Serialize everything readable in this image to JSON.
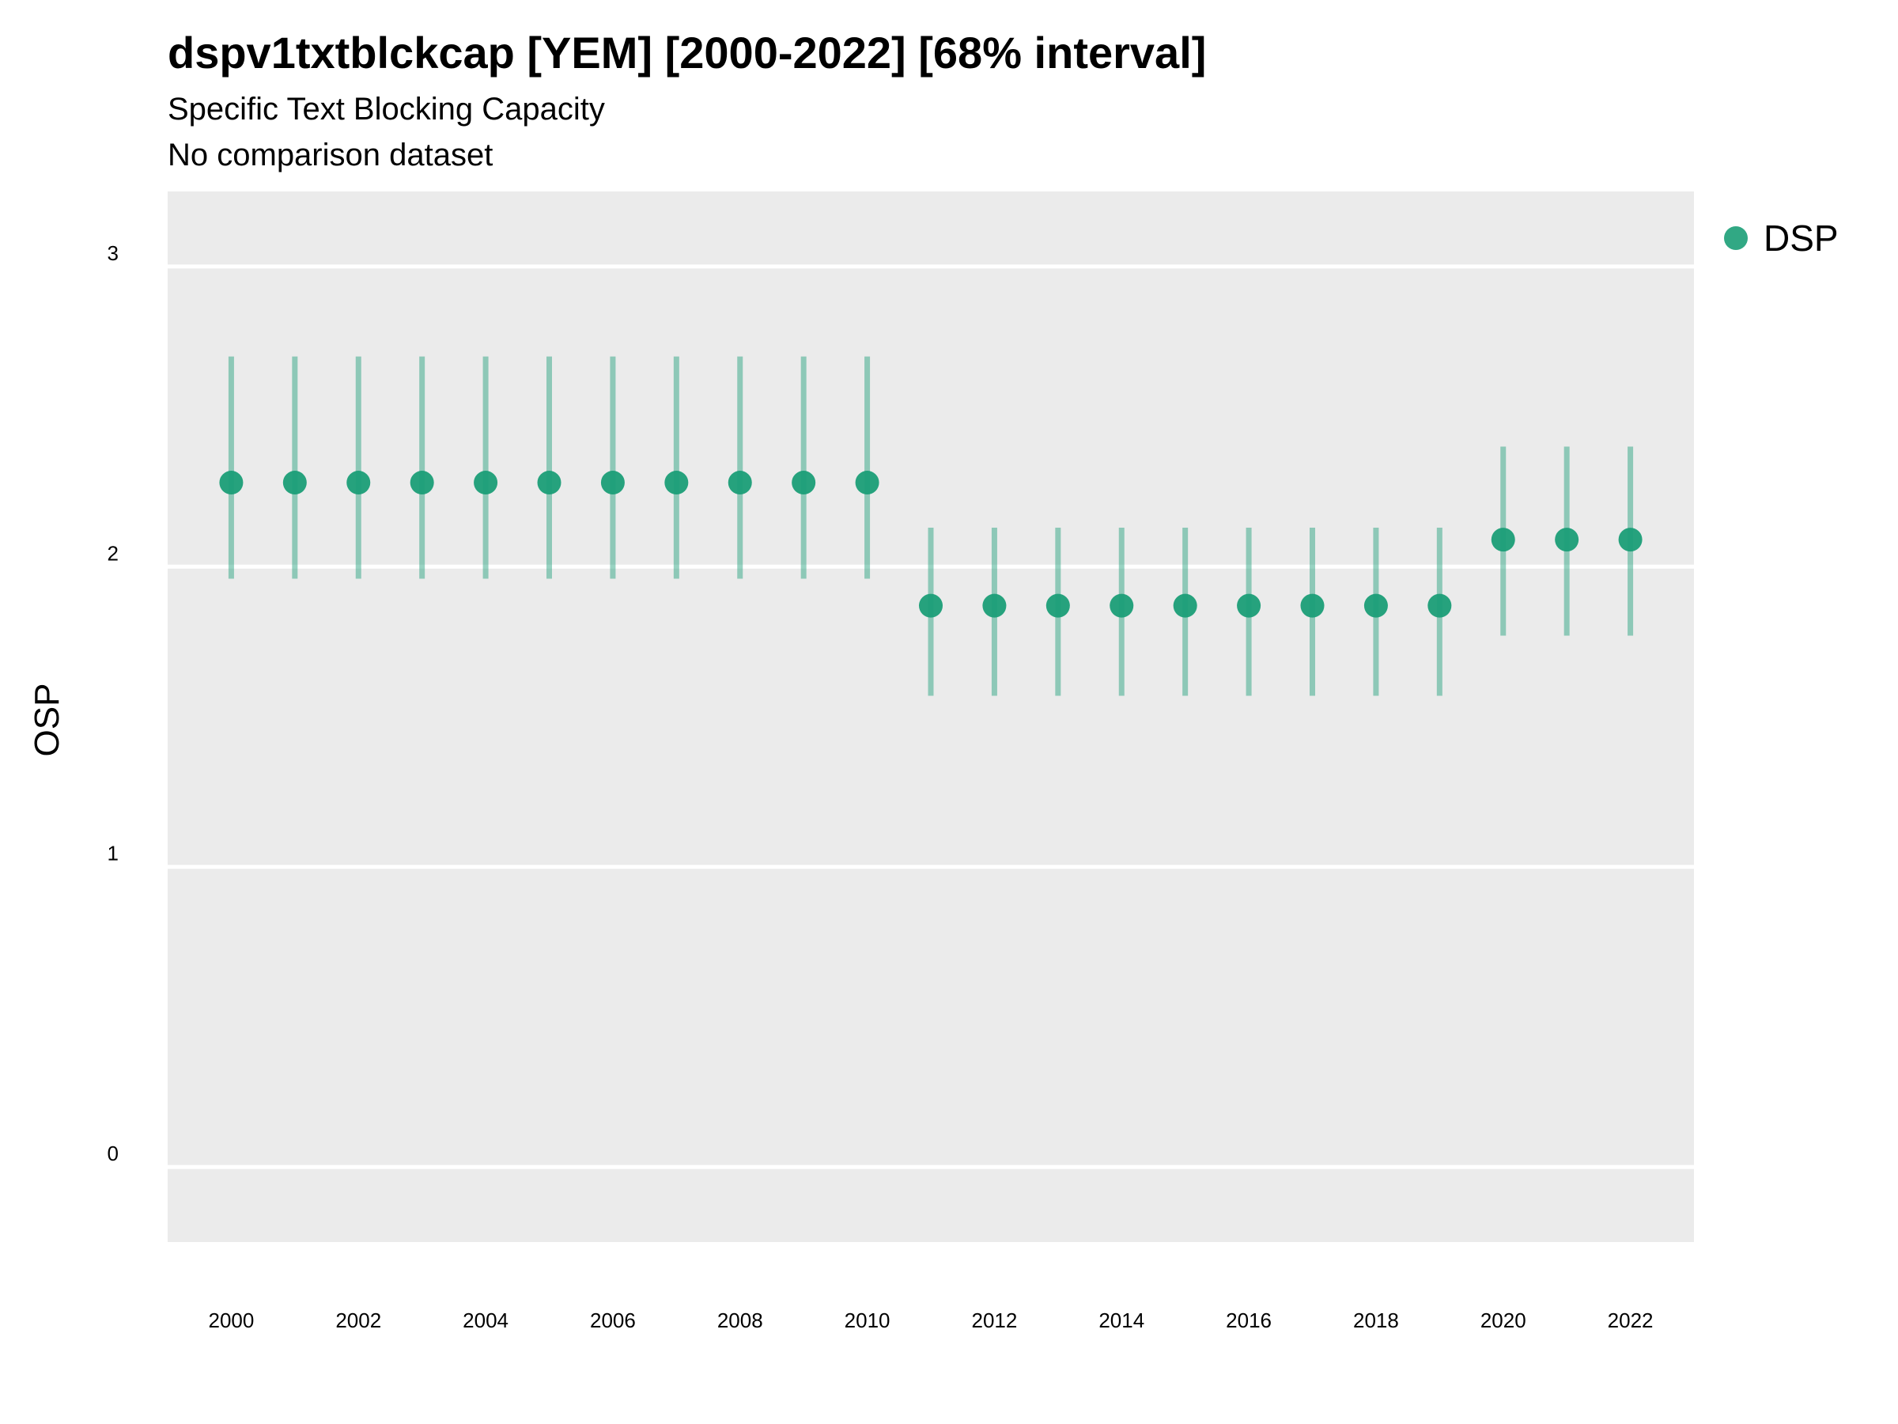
{
  "title": "dspv1txtblckcap [YEM] [2000-2022] [68% interval]",
  "subtitle": "Specific Text Blocking Capacity",
  "subtitle2": "No comparison dataset",
  "colors": {
    "series": "#1b9e77",
    "panel": "#ebebeb",
    "grid": "#ffffff"
  },
  "chart_data": {
    "type": "scatter",
    "ylabel": "OSP",
    "xlabel": "",
    "ylim": [
      -0.25,
      3.25
    ],
    "xlim": [
      1999,
      2023
    ],
    "yticks": [
      0,
      1,
      2,
      3
    ],
    "xticks": [
      2000,
      2002,
      2004,
      2006,
      2008,
      2010,
      2012,
      2014,
      2016,
      2018,
      2020,
      2022
    ],
    "legend_position": "top-right",
    "series": [
      {
        "name": "DSP",
        "x": [
          2000,
          2001,
          2002,
          2003,
          2004,
          2005,
          2006,
          2007,
          2008,
          2009,
          2010,
          2011,
          2012,
          2013,
          2014,
          2015,
          2016,
          2017,
          2018,
          2019,
          2020,
          2021,
          2022
        ],
        "y": [
          2.28,
          2.28,
          2.28,
          2.28,
          2.28,
          2.28,
          2.28,
          2.28,
          2.28,
          2.28,
          2.28,
          1.87,
          1.87,
          1.87,
          1.87,
          1.87,
          1.87,
          1.87,
          1.87,
          1.87,
          2.09,
          2.09,
          2.09
        ],
        "lower": [
          1.96,
          1.96,
          1.96,
          1.96,
          1.96,
          1.96,
          1.96,
          1.96,
          1.96,
          1.96,
          1.96,
          1.57,
          1.57,
          1.57,
          1.57,
          1.57,
          1.57,
          1.57,
          1.57,
          1.57,
          1.77,
          1.77,
          1.77
        ],
        "upper": [
          2.7,
          2.7,
          2.7,
          2.7,
          2.7,
          2.7,
          2.7,
          2.7,
          2.7,
          2.7,
          2.7,
          2.13,
          2.13,
          2.13,
          2.13,
          2.13,
          2.13,
          2.13,
          2.13,
          2.13,
          2.4,
          2.4,
          2.4
        ]
      }
    ]
  }
}
